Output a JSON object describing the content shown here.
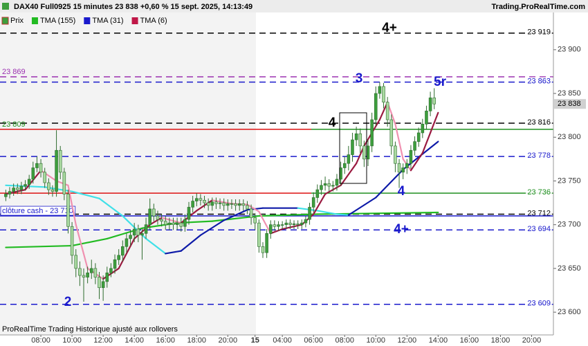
{
  "chart_data": {
    "type": "candlestick",
    "title": "DAX40 Full0925 15 minutes 23 838 +0,60 % 15 sept. 2025, 14:13:49",
    "source": "Trading.ProRealTime.com",
    "footer": "ProRealTime Trading  Historique ajusté aux rollovers",
    "price_name": "Prix",
    "up_color": "#3d9e3d",
    "down_color": "#a9d9a0",
    "ylim": [
      23574,
      23941
    ],
    "yticks": [
      {
        "value": 23900,
        "label": "23 900"
      },
      {
        "value": 23850,
        "label": "23 850"
      },
      {
        "value": 23800,
        "label": "23 800"
      },
      {
        "value": 23750,
        "label": "23 750"
      },
      {
        "value": 23700,
        "label": "23 700"
      },
      {
        "value": 23650,
        "label": "23 650"
      },
      {
        "value": 23600,
        "label": "23 600"
      }
    ],
    "xlim": [
      -1.49,
      140.6
    ],
    "xticks": [
      {
        "value": 9,
        "label": "08:00"
      },
      {
        "value": 17,
        "label": "10:00"
      },
      {
        "value": 25,
        "label": "12:00"
      },
      {
        "value": 33,
        "label": "14:00"
      },
      {
        "value": 41,
        "label": "16:00"
      },
      {
        "value": 49,
        "label": "18:00"
      },
      {
        "value": 57,
        "label": "20:00"
      },
      {
        "value": 64,
        "label": "15"
      },
      {
        "value": 71,
        "label": "04:00"
      },
      {
        "value": 79,
        "label": "06:00"
      },
      {
        "value": 87,
        "label": "08:00"
      },
      {
        "value": 95,
        "label": "10:00"
      },
      {
        "value": 103,
        "label": "12:00"
      },
      {
        "value": 111,
        "label": "14:00"
      },
      {
        "value": 119,
        "label": "16:00"
      },
      {
        "value": 127,
        "label": "18:00"
      },
      {
        "value": 135,
        "label": "20:00"
      }
    ],
    "grid": false,
    "open": [
      23732,
      23735,
      23738,
      23742,
      23740,
      23744,
      23746,
      23752,
      23765,
      23770,
      23760,
      23748,
      23740,
      23738,
      23785,
      23760,
      23735,
      23698,
      23665,
      23650,
      23642,
      23640,
      23645,
      23650,
      23640,
      23628,
      23635,
      23645,
      23650,
      23660,
      23665,
      23675,
      23684,
      23688,
      23695,
      23688,
      23690,
      23700,
      23718,
      23710,
      23706,
      23704,
      23700,
      23702,
      23700,
      23702,
      23698,
      23706,
      23720,
      23727,
      23730,
      23728,
      23725,
      23722,
      23726,
      23724,
      23725,
      23722,
      23724,
      23724,
      23722,
      23724,
      23722,
      23718,
      23708,
      23702,
      23675,
      23668,
      23690,
      23700,
      23698,
      23700,
      23700,
      23702,
      23700,
      23701,
      23700,
      23702,
      23706,
      23720,
      23731,
      23740,
      23745,
      23747,
      23744,
      23745,
      23752,
      23765,
      23770,
      23780,
      23797,
      23804,
      23790,
      23775,
      23790,
      23820,
      23850,
      23858,
      23840,
      23820,
      23790,
      23770,
      23760,
      23765,
      23770,
      23785,
      23795,
      23805,
      23815,
      23830,
      23845
    ],
    "high": [
      23740,
      23743,
      23747,
      23747,
      23749,
      23751,
      23757,
      23772,
      23778,
      23775,
      23765,
      23753,
      23745,
      23808,
      23790,
      23765,
      23740,
      23703,
      23672,
      23658,
      23650,
      23652,
      23660,
      23656,
      23646,
      23642,
      23652,
      23656,
      23666,
      23672,
      23682,
      23690,
      23694,
      23702,
      23700,
      23696,
      23708,
      23730,
      23724,
      23716,
      23712,
      23710,
      23708,
      23708,
      23708,
      23708,
      23712,
      23726,
      23733,
      23736,
      23735,
      23733,
      23730,
      23731,
      23731,
      23730,
      23730,
      23729,
      23729,
      23729,
      23729,
      23729,
      23727,
      23723,
      23713,
      23706,
      23680,
      23695,
      23705,
      23705,
      23704,
      23704,
      23706,
      23706,
      23705,
      23705,
      23706,
      23710,
      23725,
      23737,
      23746,
      23751,
      23755,
      23752,
      23750,
      23758,
      23772,
      23778,
      23790,
      23805,
      23812,
      23810,
      23796,
      23797,
      23828,
      23858,
      23863,
      23862,
      23846,
      23826,
      23795,
      23775,
      23770,
      23775,
      23791,
      23801,
      23811,
      23821,
      23836,
      23852,
      23856
    ],
    "low": [
      23727,
      23730,
      23733,
      23735,
      23735,
      23739,
      23741,
      23747,
      23760,
      23754,
      23742,
      23734,
      23732,
      23732,
      23752,
      23728,
      23690,
      23655,
      23640,
      23630,
      23612,
      23633,
      23638,
      23632,
      23615,
      23613,
      23628,
      23640,
      23644,
      23654,
      23658,
      23668,
      23676,
      23680,
      23680,
      23660,
      23684,
      23694,
      23704,
      23700,
      23698,
      23694,
      23694,
      23694,
      23694,
      23692,
      23692,
      23700,
      23714,
      23721,
      23722,
      23719,
      23716,
      23716,
      23718,
      23718,
      23716,
      23716,
      23718,
      23716,
      23716,
      23716,
      23712,
      23700,
      23694,
      23668,
      23662,
      23662,
      23684,
      23693,
      23693,
      23695,
      23695,
      23695,
      23695,
      23695,
      23695,
      23697,
      23700,
      23714,
      23725,
      23734,
      23739,
      23738,
      23738,
      23739,
      23745,
      23758,
      23762,
      23772,
      23790,
      23782,
      23766,
      23767,
      23783,
      23813,
      23844,
      23833,
      23812,
      23780,
      23760,
      23742,
      23752,
      23758,
      23764,
      23779,
      23789,
      23799,
      23809,
      23824,
      23832
    ],
    "close": [
      23735,
      23738,
      23742,
      23740,
      23744,
      23746,
      23752,
      23765,
      23770,
      23760,
      23748,
      23740,
      23738,
      23785,
      23760,
      23735,
      23698,
      23665,
      23650,
      23642,
      23640,
      23645,
      23650,
      23640,
      23628,
      23635,
      23645,
      23650,
      23660,
      23665,
      23675,
      23684,
      23688,
      23695,
      23688,
      23690,
      23700,
      23718,
      23710,
      23706,
      23704,
      23700,
      23702,
      23700,
      23702,
      23698,
      23706,
      23720,
      23727,
      23730,
      23728,
      23725,
      23722,
      23726,
      23724,
      23725,
      23722,
      23724,
      23724,
      23722,
      23724,
      23722,
      23718,
      23708,
      23702,
      23675,
      23668,
      23690,
      23700,
      23698,
      23700,
      23700,
      23702,
      23700,
      23701,
      23700,
      23702,
      23706,
      23720,
      23731,
      23740,
      23745,
      23747,
      23744,
      23745,
      23752,
      23765,
      23770,
      23780,
      23797,
      23804,
      23790,
      23775,
      23790,
      23820,
      23850,
      23858,
      23840,
      23820,
      23790,
      23770,
      23760,
      23765,
      23770,
      23785,
      23795,
      23805,
      23815,
      23830,
      23845,
      23838
    ],
    "last": {
      "value": 23838,
      "label": "23 838"
    },
    "lines": [
      {
        "name": "TMA (155)",
        "color": "#22bb22",
        "x": [
          0,
          17,
          26,
          35,
          44,
          53,
          65,
          80,
          111
        ],
        "values": [
          23674,
          23676,
          23684,
          23696,
          23702,
          23704,
          23710,
          23712,
          23714
        ]
      },
      {
        "name": "TMA (31)",
        "color": "#1a1acc",
        "up_color": "#0d1aa8",
        "down_color": "#3fe0e8",
        "x": [
          0,
          10,
          17,
          24,
          30,
          36,
          41,
          45,
          50,
          56,
          62,
          66,
          75,
          80,
          85,
          88,
          95,
          102,
          111
        ],
        "values": [
          23745,
          23743,
          23738,
          23730,
          23710,
          23684,
          23667,
          23670,
          23688,
          23705,
          23717,
          23719,
          23719,
          23716,
          23712,
          23711,
          23731,
          23763,
          23795
        ]
      },
      {
        "name": "TMA (6)",
        "color": "#c01848",
        "up_color": "#9a1a40",
        "down_color": "#f090b0",
        "x": [
          0,
          5,
          9,
          13,
          16,
          18,
          21,
          25,
          29,
          33,
          37,
          40,
          45,
          49,
          53,
          58,
          62,
          65,
          68,
          71,
          76,
          79,
          82,
          86,
          90,
          92,
          96,
          98,
          100,
          102,
          104,
          107,
          109,
          111
        ],
        "values": [
          23735,
          23740,
          23762,
          23750,
          23745,
          23700,
          23650,
          23638,
          23650,
          23684,
          23700,
          23708,
          23702,
          23716,
          23728,
          23724,
          23723,
          23715,
          23690,
          23695,
          23700,
          23712,
          23735,
          23745,
          23770,
          23790,
          23820,
          23840,
          23815,
          23775,
          23762,
          23782,
          23805,
          23828
        ]
      }
    ],
    "levels": [
      {
        "value": 23919,
        "color": "#000000",
        "style": "dash",
        "label_right": "23 919"
      },
      {
        "value": 23869,
        "color": "#9b30b0",
        "style": "dash",
        "label_left": "23 869"
      },
      {
        "value": 23863,
        "color": "#1a1acc",
        "style": "dash",
        "label_right": "23 863"
      },
      {
        "value": 23816,
        "color": "#000000",
        "style": "dash",
        "label_right": "23 816"
      },
      {
        "value": 23809,
        "color": "#dd1111",
        "color_right": "#1f8f1f",
        "style": "solid",
        "label_left": "23 809"
      },
      {
        "value": 23778,
        "color": "#1a1acc",
        "style": "dash",
        "label_right": "23 778"
      },
      {
        "value": 23736,
        "color": "#dd1111",
        "color_right": "#1f8f1f",
        "style": "solid",
        "label_right": "23 736"
      },
      {
        "value": 23712,
        "color": "#000000",
        "style": "dash",
        "label_right": "23 712"
      },
      {
        "value": 23710,
        "color": "#1a1acc",
        "style": "solid",
        "label_left": "clôture cash -  23 710"
      },
      {
        "value": 23694,
        "color": "#1a1acc",
        "style": "dash",
        "label_right": "23 694"
      },
      {
        "value": 23609,
        "color": "#1a1acc",
        "style": "dash",
        "label_right": "23 609"
      }
    ],
    "annotations": [
      {
        "text": "4+",
        "color": "#000000"
      },
      {
        "text": "3",
        "color": "#1a1acc"
      },
      {
        "text": "5r",
        "color": "#1a1acc"
      },
      {
        "text": "4",
        "color": "#000000"
      },
      {
        "text": "4",
        "color": "#1a1acc"
      },
      {
        "text": "4+",
        "color": "#1a1acc"
      },
      {
        "text": "2",
        "color": "#1a1acc"
      }
    ]
  }
}
